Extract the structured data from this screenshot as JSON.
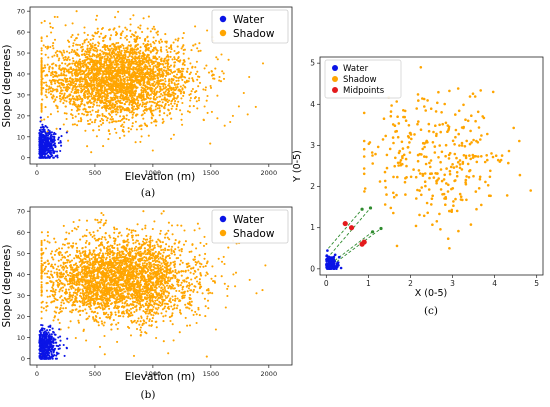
{
  "figure": {
    "panel_captions": [
      "(a)",
      "(b)",
      "(c)"
    ]
  },
  "colors": {
    "water": "#0a14e6",
    "shadow": "#ffa500",
    "midpoints": "#e31a1c",
    "connector": "#2e8b2e",
    "axis": "#222222"
  },
  "chart_data": [
    {
      "id": "a",
      "type": "scatter",
      "xlabel": "Elevation (m)",
      "ylabel": "Slope (degrees)",
      "xlim": [
        -60,
        2200
      ],
      "ylim": [
        -3,
        72
      ],
      "xticks": [
        0,
        500,
        1000,
        1500,
        2000
      ],
      "yticks": [
        0,
        10,
        20,
        30,
        40,
        50,
        60,
        70
      ],
      "xtick_labels": [
        "0",
        "500",
        "1000",
        "1500",
        "2000"
      ],
      "ytick_labels": [
        "0",
        "10",
        "20",
        "30",
        "40",
        "50",
        "60",
        "70"
      ],
      "legend_position": "top-right",
      "series": [
        {
          "name": "Water",
          "color": "#0a14e6",
          "distribution": {
            "n": 420,
            "x_mean": 90,
            "x_sd": 70,
            "x_min": 20,
            "x_max": 300,
            "y_mean": 6,
            "y_sd": 4,
            "y_min": 0,
            "y_max": 55
          }
        },
        {
          "name": "Shadow",
          "color": "#ffa500",
          "distribution": {
            "n": 3200,
            "x_mean": 700,
            "x_sd": 330,
            "x_min": 40,
            "x_max": 2100,
            "y_mean": 38,
            "y_sd": 10,
            "y_min": 0,
            "y_max": 70
          }
        }
      ]
    },
    {
      "id": "b",
      "type": "scatter",
      "xlabel": "Elevation (m)",
      "ylabel": "Slope (degrees)",
      "xlim": [
        -60,
        2200
      ],
      "ylim": [
        -3,
        72
      ],
      "xticks": [
        0,
        500,
        1000,
        1500,
        2000
      ],
      "yticks": [
        0,
        10,
        20,
        30,
        40,
        50,
        60,
        70
      ],
      "xtick_labels": [
        "0",
        "500",
        "1000",
        "1500",
        "2000"
      ],
      "ytick_labels": [
        "0",
        "10",
        "20",
        "30",
        "40",
        "50",
        "60",
        "70"
      ],
      "legend_position": "top-right",
      "series": [
        {
          "name": "Water",
          "color": "#0a14e6",
          "distribution": {
            "n": 420,
            "x_mean": 110,
            "x_sd": 75,
            "x_min": 20,
            "x_max": 330,
            "y_mean": 6,
            "y_sd": 4,
            "y_min": 0,
            "y_max": 16
          }
        },
        {
          "name": "Shadow",
          "color": "#ffa500",
          "distribution": {
            "n": 3200,
            "x_mean": 720,
            "x_sd": 330,
            "x_min": 40,
            "x_max": 2100,
            "y_mean": 38,
            "y_sd": 10,
            "y_min": 1,
            "y_max": 70
          }
        }
      ]
    },
    {
      "id": "c",
      "type": "scatter",
      "xlabel": "X (0-5)",
      "ylabel": "Y (0-5)",
      "xlim": [
        -0.15,
        5.15
      ],
      "ylim": [
        -0.15,
        5.15
      ],
      "xticks": [
        0,
        1,
        2,
        3,
        4,
        5
      ],
      "yticks": [
        0,
        1,
        2,
        3,
        4,
        5
      ],
      "xtick_labels": [
        "0",
        "1",
        "2",
        "3",
        "4",
        "5"
      ],
      "ytick_labels": [
        "0",
        "1",
        "2",
        "3",
        "4",
        "5"
      ],
      "legend_position": "upper-left",
      "series": [
        {
          "name": "Water",
          "color": "#0a14e6",
          "distribution": {
            "n": 140,
            "x_mean": 0.12,
            "x_sd": 0.12,
            "x_min": 0,
            "x_max": 0.6,
            "y_mean": 0.12,
            "y_sd": 0.14,
            "y_min": 0,
            "y_max": 0.85
          }
        },
        {
          "name": "Shadow",
          "color": "#ffa500",
          "distribution": {
            "n": 330,
            "x_mean": 2.7,
            "x_sd": 0.85,
            "x_min": 0.9,
            "x_max": 5.0,
            "y_mean": 2.7,
            "y_sd": 0.8,
            "y_min": 0.5,
            "y_max": 4.9
          }
        },
        {
          "name": "Midpoints",
          "color": "#e31a1c",
          "points": [
            [
              0.45,
              1.1
            ],
            [
              0.6,
              1.0
            ],
            [
              0.9,
              0.65
            ],
            [
              0.85,
              0.6
            ]
          ]
        }
      ],
      "connectors": [
        [
          [
            0.1,
            0.35
          ],
          [
            1.05,
            1.48
          ]
        ],
        [
          [
            0.15,
            0.1
          ],
          [
            1.3,
            0.98
          ]
        ],
        [
          [
            0.05,
            0.5
          ],
          [
            0.85,
            1.45
          ]
        ],
        [
          [
            0.2,
            0.2
          ],
          [
            1.1,
            0.9
          ]
        ]
      ]
    }
  ]
}
